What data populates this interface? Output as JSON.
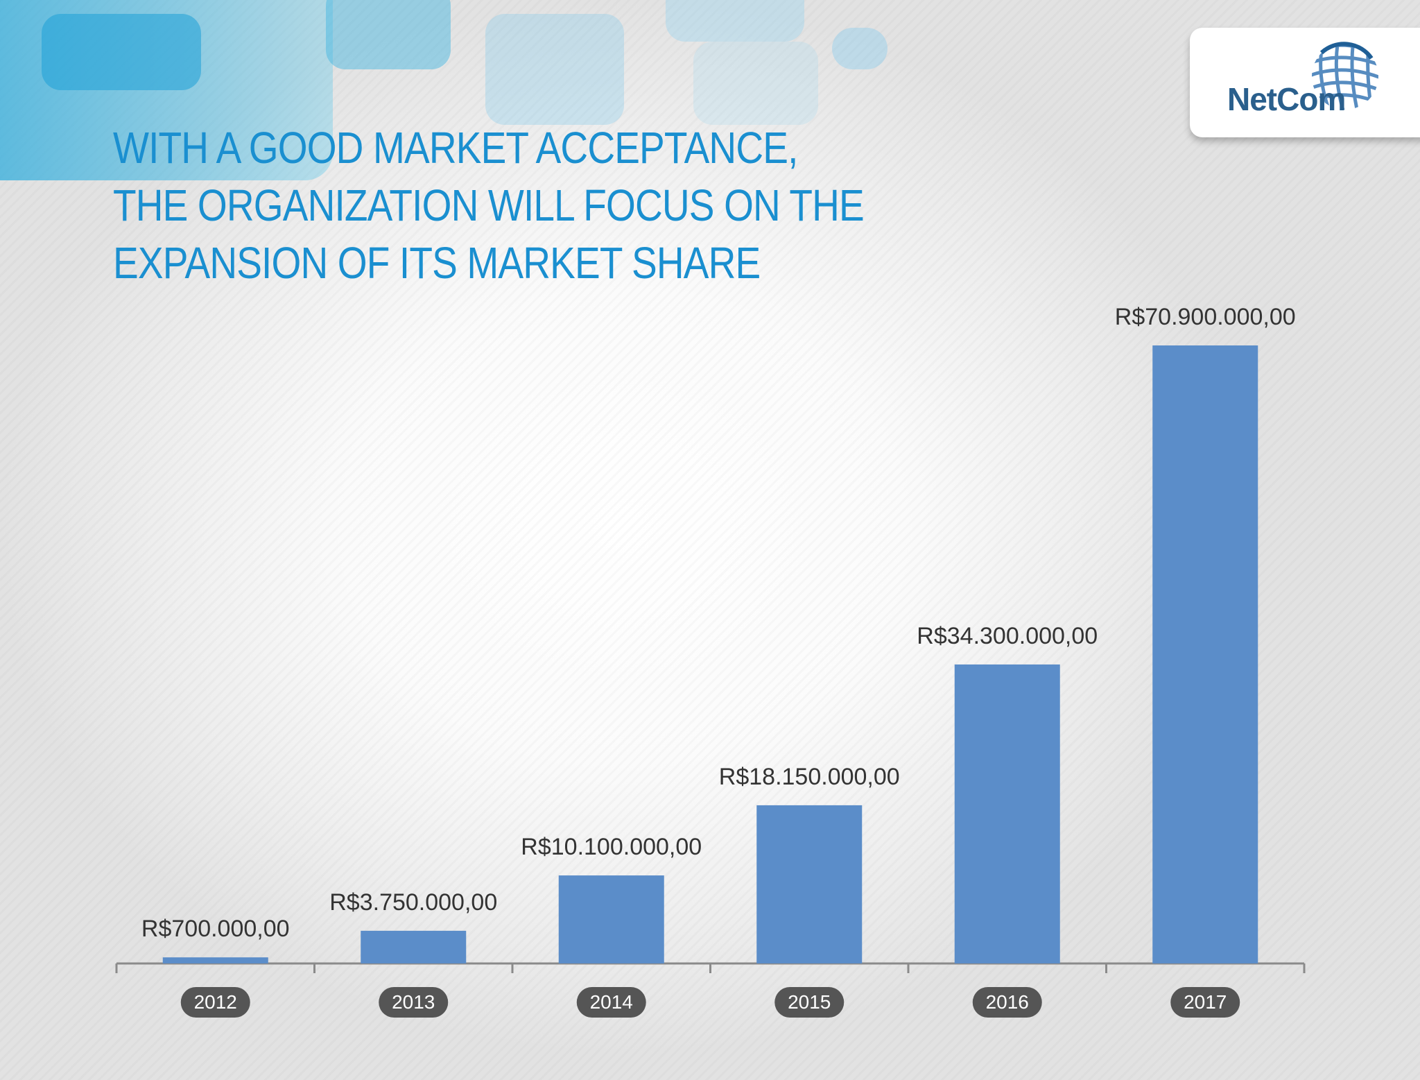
{
  "title_lines": [
    "WITH A GOOD MARKET ACCEPTANCE,",
    "THE ORGANIZATION WILL FOCUS ON THE",
    "EXPANSION OF ITS MARKET SHARE"
  ],
  "logo": {
    "text": "NetCom",
    "icon": "globe-icon"
  },
  "colors": {
    "title": "#1a8fd0",
    "bar": "#5b8dc9",
    "year_pill": "#555555",
    "axis": "#8a8a8a"
  },
  "chart_data": {
    "type": "bar",
    "title": "",
    "xlabel": "",
    "ylabel": "",
    "categories": [
      "2012",
      "2013",
      "2014",
      "2015",
      "2016",
      "2017"
    ],
    "values": [
      700000,
      3750000,
      10100000,
      18150000,
      34300000,
      70900000
    ],
    "data_labels": [
      "R$700.000,00",
      "R$3.750.000,00",
      "R$10.100.000,00",
      "R$18.150.000,00",
      "R$34.300.000,00",
      "R$70.900.000,00"
    ],
    "ylim": [
      0,
      70900000
    ],
    "grid": false,
    "legend": "none"
  }
}
